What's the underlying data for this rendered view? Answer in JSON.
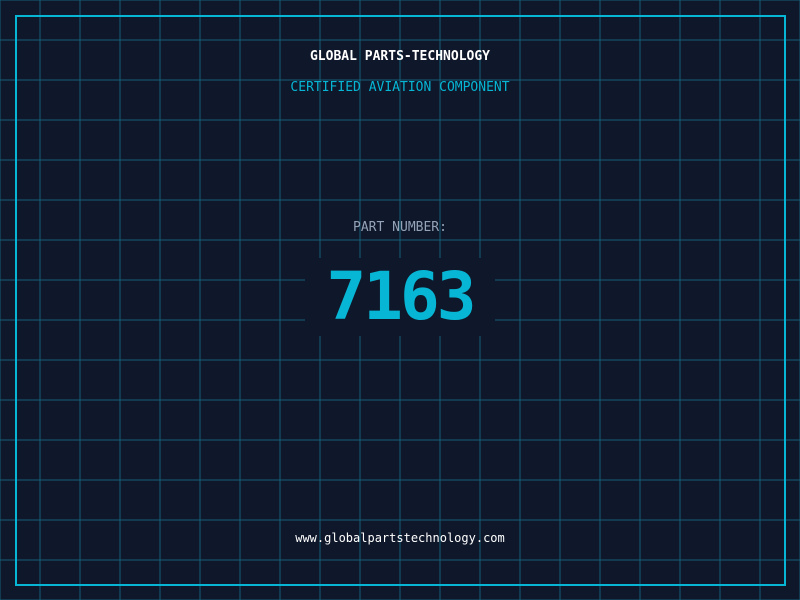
{
  "header": {
    "title": "GLOBAL PARTS-TECHNOLOGY",
    "subtitle": "CERTIFIED AVIATION COMPONENT"
  },
  "part": {
    "label": "PART NUMBER:",
    "number": "7163"
  },
  "footer": {
    "url": "www.globalpartstechnology.com"
  },
  "colors": {
    "background": "#0f172a",
    "accent": "#06b6d4",
    "grid": "#155e75"
  }
}
